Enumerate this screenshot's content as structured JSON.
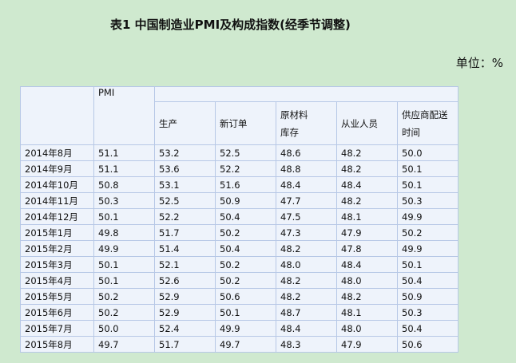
{
  "title": "表1 中国制造业PMI及构成指数(经季节调整)",
  "unit": "单位：%",
  "table": {
    "pmi_header": "PMI",
    "sub_headers": [
      [
        "生产"
      ],
      [
        "新订单"
      ],
      [
        "原材料",
        "库存"
      ],
      [
        "从业人员"
      ],
      [
        "供应商配送",
        "时间"
      ]
    ],
    "rows": [
      [
        "2014年8月",
        "51.1",
        "53.2",
        "52.5",
        "48.6",
        "48.2",
        "50.0"
      ],
      [
        "2014年9月",
        "51.1",
        "53.6",
        "52.2",
        "48.8",
        "48.2",
        "50.1"
      ],
      [
        "2014年10月",
        "50.8",
        "53.1",
        "51.6",
        "48.4",
        "48.4",
        "50.1"
      ],
      [
        "2014年11月",
        "50.3",
        "52.5",
        "50.9",
        "47.7",
        "48.2",
        "50.3"
      ],
      [
        "2014年12月",
        "50.1",
        "52.2",
        "50.4",
        "47.5",
        "48.1",
        "49.9"
      ],
      [
        "2015年1月",
        "49.8",
        "51.7",
        "50.2",
        "47.3",
        "47.9",
        "50.2"
      ],
      [
        "2015年2月",
        "49.9",
        "51.4",
        "50.4",
        "48.2",
        "47.8",
        "49.9"
      ],
      [
        "2015年3月",
        "50.1",
        "52.1",
        "50.2",
        "48.0",
        "48.4",
        "50.1"
      ],
      [
        "2015年4月",
        "50.1",
        "52.6",
        "50.2",
        "48.2",
        "48.0",
        "50.4"
      ],
      [
        "2015年5月",
        "50.2",
        "52.9",
        "50.6",
        "48.2",
        "48.2",
        "50.9"
      ],
      [
        "2015年6月",
        "50.2",
        "52.9",
        "50.1",
        "48.7",
        "48.1",
        "50.3"
      ],
      [
        "2015年7月",
        "50.0",
        "52.4",
        "49.9",
        "48.4",
        "48.0",
        "50.4"
      ],
      [
        "2015年8月",
        "49.7",
        "51.7",
        "49.7",
        "48.3",
        "47.9",
        "50.6"
      ]
    ]
  }
}
